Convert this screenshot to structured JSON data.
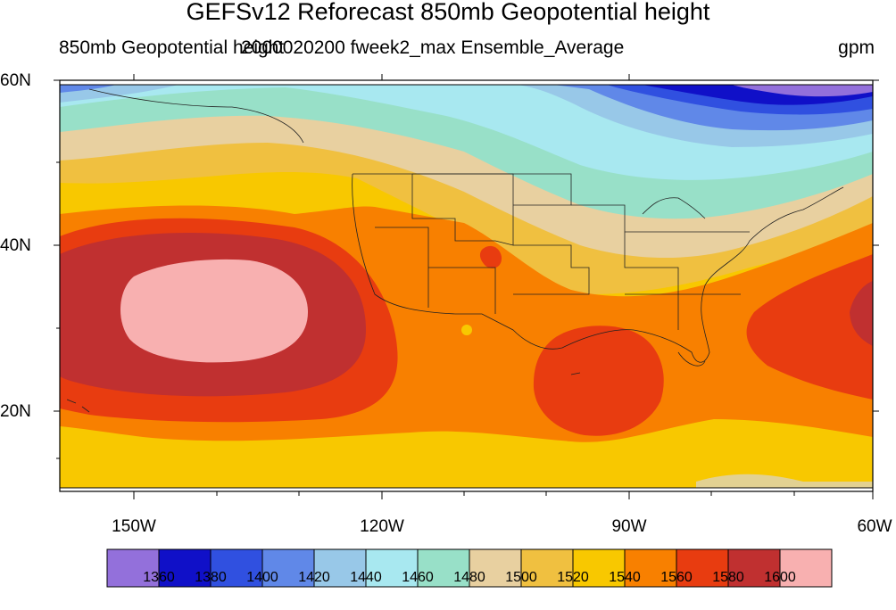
{
  "title": "GEFSv12 Reforecast 850mb Geopotential height",
  "subtitle_left": "850mb Geopotential height",
  "subtitle_overlap": "2000020200 fweek2_max Ensemble_Average",
  "units": "gpm",
  "lat_labels": [
    "60N",
    "40N",
    "20N"
  ],
  "lon_labels": [
    "150W",
    "120W",
    "90W",
    "60W"
  ],
  "colorbar": {
    "colors": [
      "#9370db",
      "#1010c8",
      "#3050e0",
      "#6088e8",
      "#98c8e8",
      "#a8e8f0",
      "#98e0c8",
      "#e8d0a0",
      "#f0c040",
      "#f8c800",
      "#f88000",
      "#e83c10",
      "#c03030",
      "#f8b0b0"
    ],
    "labels": [
      "1360",
      "1380",
      "1400",
      "1420",
      "1440",
      "1460",
      "1480",
      "1500",
      "1520",
      "1540",
      "1560",
      "1580",
      "1600"
    ]
  },
  "chart_data": {
    "type": "heatmap",
    "title": "GEFSv12 Reforecast 850mb Geopotential height",
    "variable": "850mb Geopotential height",
    "units": "gpm",
    "lat_range": [
      10,
      60
    ],
    "lon_range": [
      -160,
      -60
    ],
    "contour_levels": [
      1360,
      1380,
      1400,
      1420,
      1440,
      1460,
      1480,
      1500,
      1520,
      1540,
      1560,
      1580,
      1600
    ]
  }
}
